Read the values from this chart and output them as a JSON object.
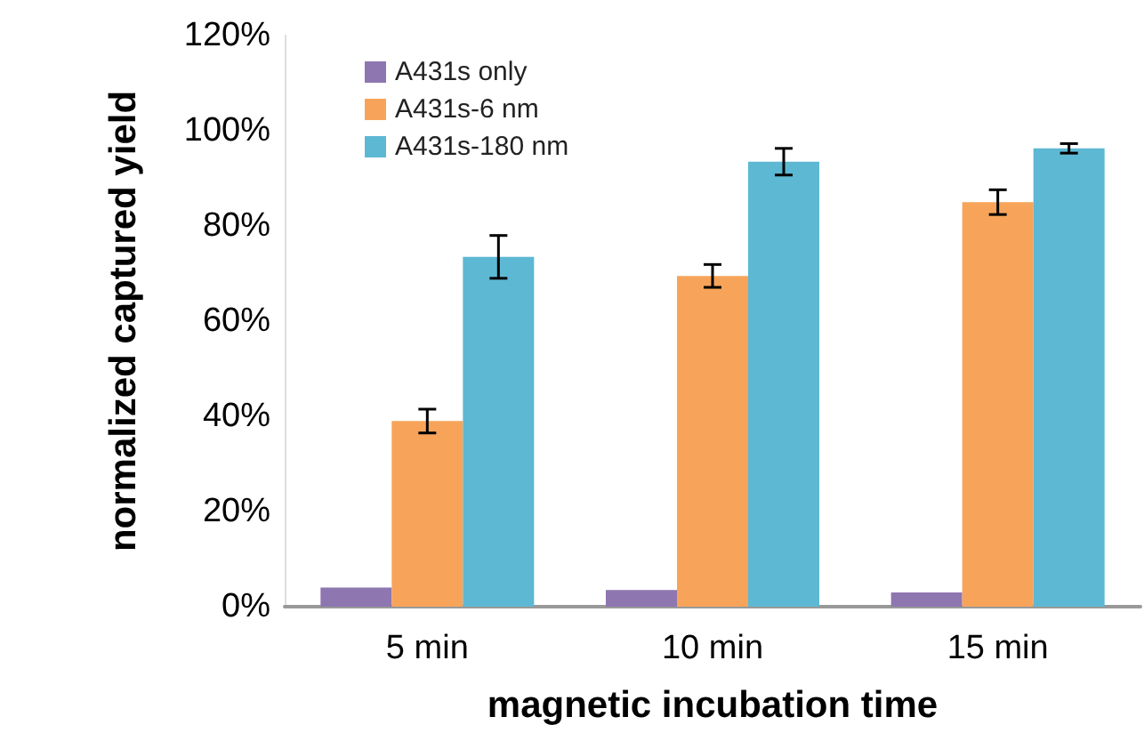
{
  "chart_data": {
    "type": "bar",
    "xlabel": "magnetic incubation time",
    "ylabel": "normalized captured yield",
    "categories": [
      "5 min",
      "10 min",
      "15 min"
    ],
    "series": [
      {
        "name": "A431s only",
        "color": "#8e76b0",
        "values": [
          4,
          3.5,
          3
        ]
      },
      {
        "name": "A431s-6 nm",
        "color": "#f7a45a",
        "values": [
          39,
          69.5,
          85
        ],
        "errors": [
          2.5,
          2.4,
          2.6
        ]
      },
      {
        "name": "A431s-180 nm",
        "color": "#5db8d3",
        "values": [
          73.5,
          93.5,
          96.3
        ],
        "errors": [
          4.5,
          2.8,
          1
        ]
      }
    ],
    "ylim": [
      0,
      120
    ],
    "yticks": [
      {
        "value": 0,
        "label": "0%"
      },
      {
        "value": 20,
        "label": "20%"
      },
      {
        "value": 40,
        "label": "40%"
      },
      {
        "value": 60,
        "label": "60%"
      },
      {
        "value": 80,
        "label": "80%"
      },
      {
        "value": 100,
        "label": "100%"
      },
      {
        "value": 120,
        "label": "120%"
      }
    ],
    "grid": false,
    "legend": "top left"
  }
}
